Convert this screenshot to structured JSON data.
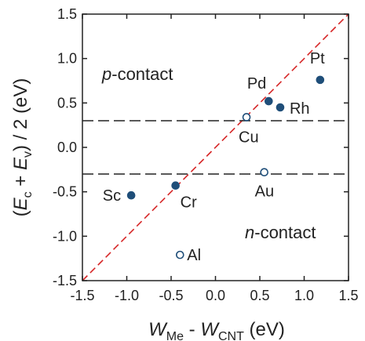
{
  "chart_data": {
    "type": "scatter",
    "xlim": [
      -1.5,
      1.5
    ],
    "ylim": [
      -1.5,
      1.5
    ],
    "x_ticks": [
      -1.5,
      -1.0,
      -0.5,
      0.0,
      0.5,
      1.0,
      1.5
    ],
    "y_ticks": [
      -1.5,
      -1.0,
      -0.5,
      0.0,
      0.5,
      1.0,
      1.5
    ],
    "x_tick_labels": [
      "-1.5",
      "-1.0",
      "-0.5",
      "0.0",
      "0.5",
      "1.0",
      "1.5"
    ],
    "y_tick_labels": [
      "-1.5",
      "-1.0",
      "-0.5",
      "0.0",
      "0.5",
      "1.0",
      "1.5"
    ],
    "xlabel": {
      "w1": "W",
      "sub1": "Me",
      "minus": " - ",
      "w2": "W",
      "sub2": "CNT",
      "unit": " (eV)"
    },
    "ylabel": {
      "open": "(",
      "e1": "E",
      "s1": "c",
      "plus": " + ",
      "e2": "E",
      "s2": "v",
      "tail": ") / 2  (eV)"
    },
    "region_labels": {
      "p": {
        "italic": "p",
        "rest": "-contact"
      },
      "n": {
        "italic": "n",
        "rest": "-contact"
      }
    },
    "reference_lines": {
      "dashed_horizontal_y": [
        0.3,
        -0.3
      ],
      "diagonal": {
        "from": [
          -1.5,
          -1.5
        ],
        "to": [
          1.5,
          1.5
        ],
        "color": "#d62728"
      }
    },
    "points": [
      {
        "label": "Pt",
        "x": 1.18,
        "y": 0.76,
        "filled": true
      },
      {
        "label": "Pd",
        "x": 0.6,
        "y": 0.52,
        "filled": true
      },
      {
        "label": "Rh",
        "x": 0.73,
        "y": 0.45,
        "filled": true
      },
      {
        "label": "Cu",
        "x": 0.35,
        "y": 0.34,
        "filled": false
      },
      {
        "label": "Au",
        "x": 0.55,
        "y": -0.28,
        "filled": false
      },
      {
        "label": "Sc",
        "x": -0.95,
        "y": -0.54,
        "filled": true
      },
      {
        "label": "Cr",
        "x": -0.45,
        "y": -0.43,
        "filled": true
      },
      {
        "label": "Al",
        "x": -0.4,
        "y": -1.21,
        "filled": false
      }
    ],
    "marker_color": "#1f4e79",
    "grid": false
  }
}
